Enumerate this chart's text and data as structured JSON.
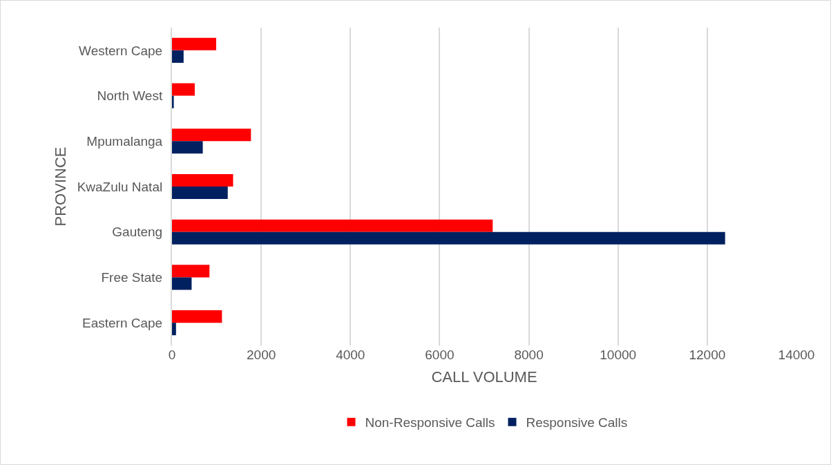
{
  "chart_data": {
    "type": "bar",
    "orientation": "horizontal",
    "xlabel": "CALL VOLUME",
    "ylabel": "PROVINCE",
    "categories": [
      "Western Cape",
      "North West",
      "Mpumalanga",
      "KwaZulu Natal",
      "Gauteng",
      "Free State",
      "Eastern Cape"
    ],
    "series": [
      {
        "name": "Non-Responsive Calls",
        "color": "#ff0000",
        "values": [
          990,
          510,
          1770,
          1370,
          7190,
          840,
          1120
        ]
      },
      {
        "name": "Responsive Calls",
        "color": "#002060",
        "values": [
          260,
          40,
          690,
          1250,
          12400,
          440,
          90
        ]
      }
    ],
    "xlim": [
      0,
      14000
    ],
    "xticks": [
      0,
      2000,
      4000,
      6000,
      8000,
      10000,
      12000,
      14000
    ],
    "grid": "x",
    "legend": "bottom"
  }
}
